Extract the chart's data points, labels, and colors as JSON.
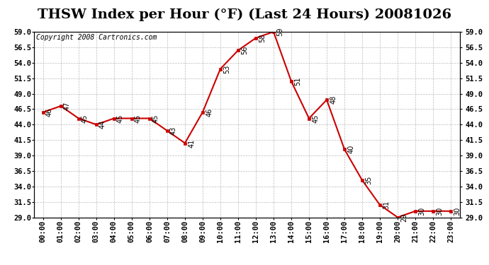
{
  "title": "THSW Index per Hour (°F) (Last 24 Hours) 20081026",
  "copyright": "Copyright 2008 Cartronics.com",
  "hours": [
    "00:00",
    "01:00",
    "02:00",
    "03:00",
    "04:00",
    "05:00",
    "06:00",
    "07:00",
    "08:00",
    "09:00",
    "10:00",
    "11:00",
    "12:00",
    "13:00",
    "14:00",
    "15:00",
    "16:00",
    "17:00",
    "18:00",
    "19:00",
    "20:00",
    "21:00",
    "22:00",
    "23:00"
  ],
  "values": [
    46,
    47,
    45,
    44,
    45,
    45,
    45,
    43,
    41,
    46,
    53,
    56,
    58,
    59,
    51,
    45,
    48,
    40,
    35,
    31,
    29,
    30,
    30,
    30
  ],
  "line_color": "#cc0000",
  "marker_color": "#cc0000",
  "bg_color": "#ffffff",
  "plot_bg_color": "#ffffff",
  "grid_color": "#aaaaaa",
  "ylim_min": 29.0,
  "ylim_max": 59.0,
  "ytick_step": 2.5,
  "title_fontsize": 14,
  "copyright_fontsize": 7,
  "label_fontsize": 7,
  "tick_fontsize": 7.5
}
